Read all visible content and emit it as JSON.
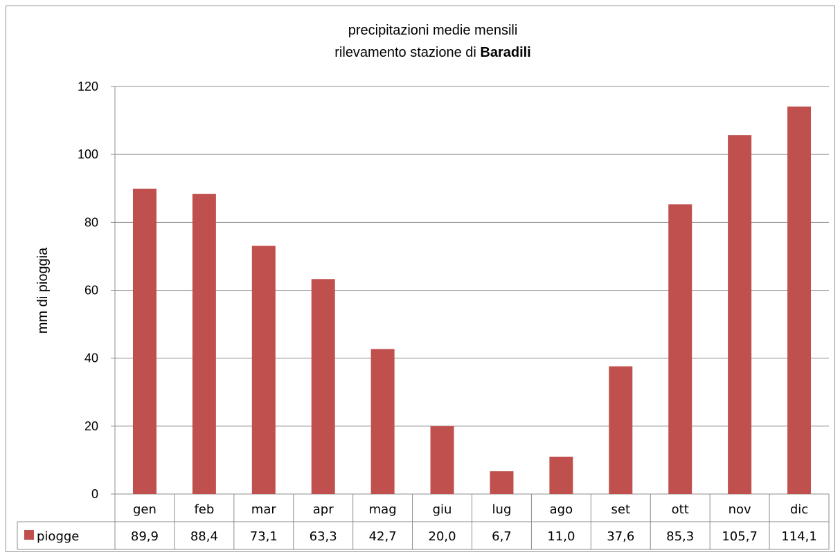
{
  "chart_data": {
    "type": "bar",
    "title_line1": "precipitazioni medie mensili",
    "title_line2_prefix": "rilevamento stazione di ",
    "title_line2_bold": "Baradili",
    "ylabel": "mm di pioggia",
    "xlabel": "",
    "ylim": [
      0,
      120
    ],
    "yticks": [
      "0",
      "20",
      "40",
      "60",
      "80",
      "100",
      "120"
    ],
    "grid": true,
    "categories": [
      "gen",
      "feb",
      "mar",
      "apr",
      "mag",
      "giu",
      "lug",
      "ago",
      "set",
      "ott",
      "nov",
      "dic"
    ],
    "series": [
      {
        "name": "piogge",
        "color": "#c0504d",
        "values": [
          89.9,
          88.4,
          73.1,
          63.3,
          42.7,
          20.0,
          6.7,
          11.0,
          37.6,
          85.3,
          105.7,
          114.1
        ],
        "labels": [
          "89,9",
          "88,4",
          "73,1",
          "63,3",
          "42,7",
          "20,0",
          "6,7",
          "11,0",
          "37,6",
          "85,3",
          "105,7",
          "114,1"
        ]
      }
    ],
    "data_table": true
  }
}
